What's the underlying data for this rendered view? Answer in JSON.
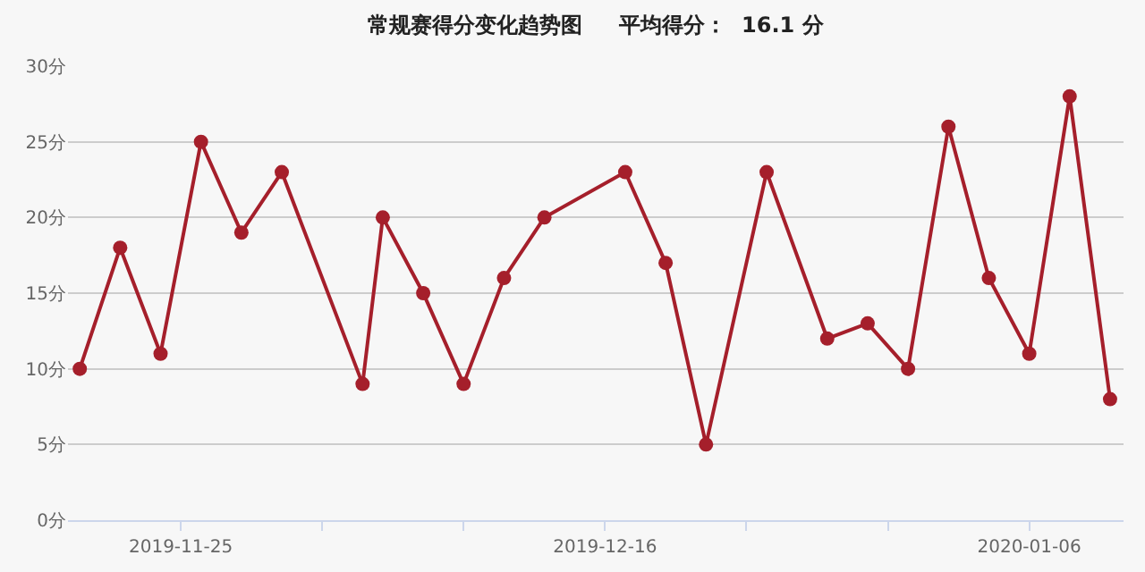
{
  "chart_data": {
    "type": "line",
    "title": "常规赛得分变化趋势图     平均得分：  16.1 分",
    "x": [
      "2019-11-20",
      "2019-11-22",
      "2019-11-24",
      "2019-11-26",
      "2019-11-28",
      "2019-11-30",
      "2019-12-04",
      "2019-12-05",
      "2019-12-07",
      "2019-12-09",
      "2019-12-11",
      "2019-12-13",
      "2019-12-17",
      "2019-12-19",
      "2019-12-21",
      "2019-12-24",
      "2019-12-27",
      "2019-12-29",
      "2019-12-31",
      "2020-01-02",
      "2020-01-04",
      "2020-01-06",
      "2020-01-08",
      "2020-01-10"
    ],
    "series": [
      {
        "color": "#a51f2b",
        "values": [
          10,
          18,
          11,
          25,
          19,
          23,
          9,
          20,
          15,
          9,
          16,
          20,
          23,
          17,
          5,
          23,
          12,
          13,
          10,
          26,
          16,
          11,
          28,
          8
        ]
      }
    ],
    "xlim": [
      "2019-11-19T10:00",
      "2020-01-10T16:00"
    ],
    "xticks": [
      {
        "value": "2019-11-25",
        "label": "2019-11-25"
      },
      {
        "value": "2019-12-02",
        "label": null
      },
      {
        "value": "2019-12-09",
        "label": null
      },
      {
        "value": "2019-12-16",
        "label": "2019-12-16"
      },
      {
        "value": "2019-12-23",
        "label": null
      },
      {
        "value": "2019-12-30",
        "label": null
      },
      {
        "value": "2020-01-06",
        "label": "2020-01-06"
      }
    ],
    "ylim": [
      0,
      30
    ],
    "yticks": [
      {
        "value": 0,
        "label": "0分"
      },
      {
        "value": 5,
        "label": "5分"
      },
      {
        "value": 10,
        "label": "10分"
      },
      {
        "value": 15,
        "label": "15分"
      },
      {
        "value": 20,
        "label": "20分"
      },
      {
        "value": 25,
        "label": "25分"
      },
      {
        "value": 30,
        "label": "30分"
      }
    ],
    "grid": "y",
    "marker": "circle",
    "line_style": "solid"
  }
}
